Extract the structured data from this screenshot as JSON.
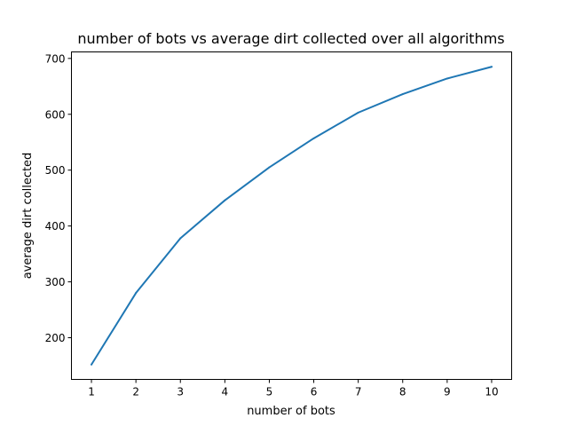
{
  "chart_data": {
    "type": "line",
    "title": "number of bots vs average dirt collected over all algorithms",
    "xlabel": "number of bots",
    "ylabel": "average dirt collected",
    "x": [
      1,
      2,
      3,
      4,
      5,
      6,
      7,
      8,
      9,
      10
    ],
    "series": [
      {
        "values": [
          152,
          280,
          378,
          446,
          505,
          557,
          603,
          636,
          664,
          685
        ],
        "color": "#1f77b4"
      }
    ],
    "xlim": [
      0.55,
      10.45
    ],
    "ylim": [
      125.35,
      711.65
    ],
    "xticks": [
      1,
      2,
      3,
      4,
      5,
      6,
      7,
      8,
      9,
      10
    ],
    "yticks": [
      200,
      300,
      400,
      500,
      600,
      700
    ],
    "grid": false,
    "legend": "none"
  }
}
